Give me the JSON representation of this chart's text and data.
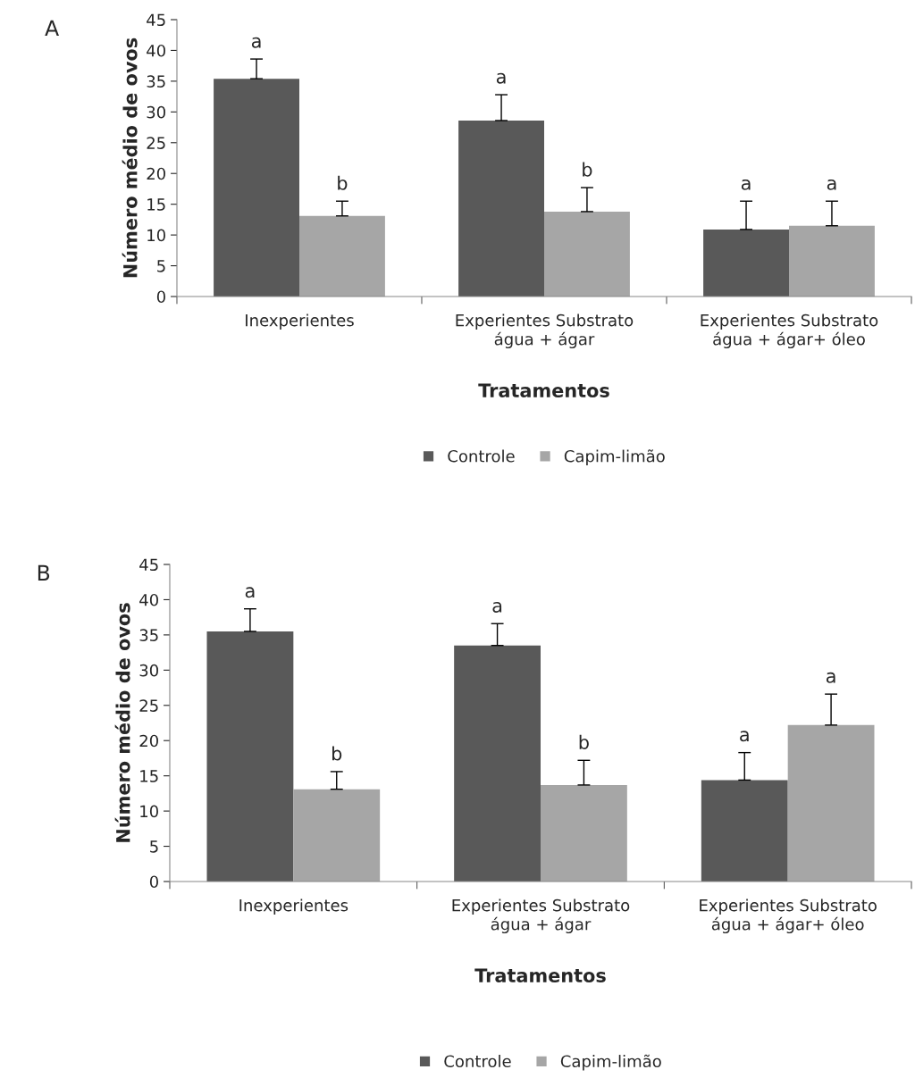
{
  "chart_data": [
    {
      "type": "bar",
      "annotations": [
        "A"
      ],
      "xlabel": "Tratamentos",
      "ylabel": "Número médio de ovos",
      "categories": [
        "Inexperientes",
        "Experientes Substrato\nágua + ágar",
        "Experientes Substrato\nágua + ágar+ óleo"
      ],
      "series": [
        {
          "name": "Controle",
          "color": "#595959",
          "values": [
            35.4,
            28.6,
            10.9
          ],
          "errors": [
            [
              35.4,
              38.6
            ],
            [
              28.6,
              32.8
            ],
            [
              10.9,
              15.5
            ]
          ],
          "value_labels": [
            "a",
            "a",
            "a"
          ]
        },
        {
          "name": "Capim-limão",
          "color": "#a6a6a6",
          "values": [
            13.1,
            13.8,
            11.5
          ],
          "errors": [
            [
              13.1,
              15.5
            ],
            [
              13.8,
              17.7
            ],
            [
              11.5,
              15.5
            ]
          ],
          "value_labels": [
            "b",
            "b",
            "a"
          ]
        }
      ],
      "ylim": [
        0,
        45
      ],
      "yticks": [
        0,
        5,
        10,
        15,
        20,
        25,
        30,
        35,
        40,
        45
      ],
      "grid": false,
      "legend": "bottom"
    },
    {
      "type": "bar",
      "annotations": [
        "B"
      ],
      "xlabel": "Tratamentos",
      "ylabel": "Número médio de ovos",
      "categories": [
        "Inexperientes",
        "Experientes Substrato\nágua + ágar",
        "Experientes Substrato\nágua + ágar+ óleo"
      ],
      "series": [
        {
          "name": "Controle",
          "color": "#595959",
          "values": [
            35.5,
            33.5,
            14.4
          ],
          "errors": [
            [
              35.5,
              38.7
            ],
            [
              33.5,
              36.6
            ],
            [
              14.4,
              18.3
            ]
          ],
          "value_labels": [
            "a",
            "a",
            "a"
          ]
        },
        {
          "name": "Capim-limão",
          "color": "#a6a6a6",
          "values": [
            13.1,
            13.7,
            22.2
          ],
          "errors": [
            [
              13.1,
              15.6
            ],
            [
              13.7,
              17.2
            ],
            [
              22.2,
              26.6
            ]
          ],
          "value_labels": [
            "b",
            "b",
            "a"
          ]
        }
      ],
      "ylim": [
        0,
        45
      ],
      "yticks": [
        0,
        5,
        10,
        15,
        20,
        25,
        30,
        35,
        40,
        45
      ],
      "grid": false,
      "legend": "bottom"
    }
  ]
}
